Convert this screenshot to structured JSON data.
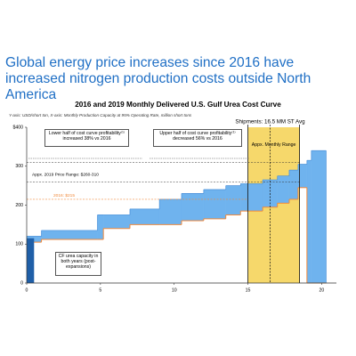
{
  "headline": "Global energy price increases since 2016 have increased nitrogen production costs outside North America",
  "chart_data": {
    "type": "step-area",
    "title": "2016 and 2019 Monthly Delivered U.S. Gulf Urea Cost Curve",
    "subtitle": "Y-axis: USD/short ton, X-axis: Monthly Production Capacity at 95% Operating Rate, million short tons",
    "x": [
      0,
      1,
      4.8,
      5.2,
      7,
      9,
      10.5,
      12,
      13.5,
      14.5,
      16,
      17,
      17.8,
      18.4,
      19,
      19.3,
      20.3
    ],
    "series": [
      {
        "color": "#f08a3c",
        "values": [
          105,
          112,
          112,
          140,
          150,
          150,
          160,
          165,
          175,
          185,
          195,
          205,
          215,
          245,
          0,
          0,
          0
        ]
      },
      {
        "color": "#6fb3ee",
        "values": [
          120,
          135,
          175,
          175,
          190,
          215,
          230,
          240,
          250,
          255,
          265,
          275,
          290,
          305,
          315,
          340,
          0
        ]
      }
    ],
    "highlight": {
      "x": [
        0,
        0.5
      ],
      "value": 115,
      "color": "#1f5fa8",
      "label": "CF urea capacity in both years (post-expansions)"
    },
    "xlim": [
      0,
      21
    ],
    "ylim": [
      0,
      400
    ],
    "xticks": [
      0,
      5,
      10,
      15,
      20
    ],
    "yticks": [
      0,
      100,
      200,
      300,
      {
        "value": 400,
        "label": "$400"
      }
    ],
    "shipments": {
      "label": "Shipments: 16.5 MM ST Avg",
      "x": 16.5
    },
    "monthly_range": {
      "label": "Appx. Monthly Range",
      "x": [
        15,
        18.5
      ],
      "color": "#f6d86b"
    },
    "price_2019": {
      "label": "Appx. 2019 Price Range: $260-310",
      "values": [
        260,
        310
      ]
    },
    "price_2016": {
      "label": "2016: $215",
      "value": 215
    },
    "lower_note": "Lower half of cost curve profitability⁽¹⁾ increased 38% vs 2016",
    "upper_note": "Upper half of cost curve profitability⁽¹⁾ decreased 56% vs 2016"
  }
}
